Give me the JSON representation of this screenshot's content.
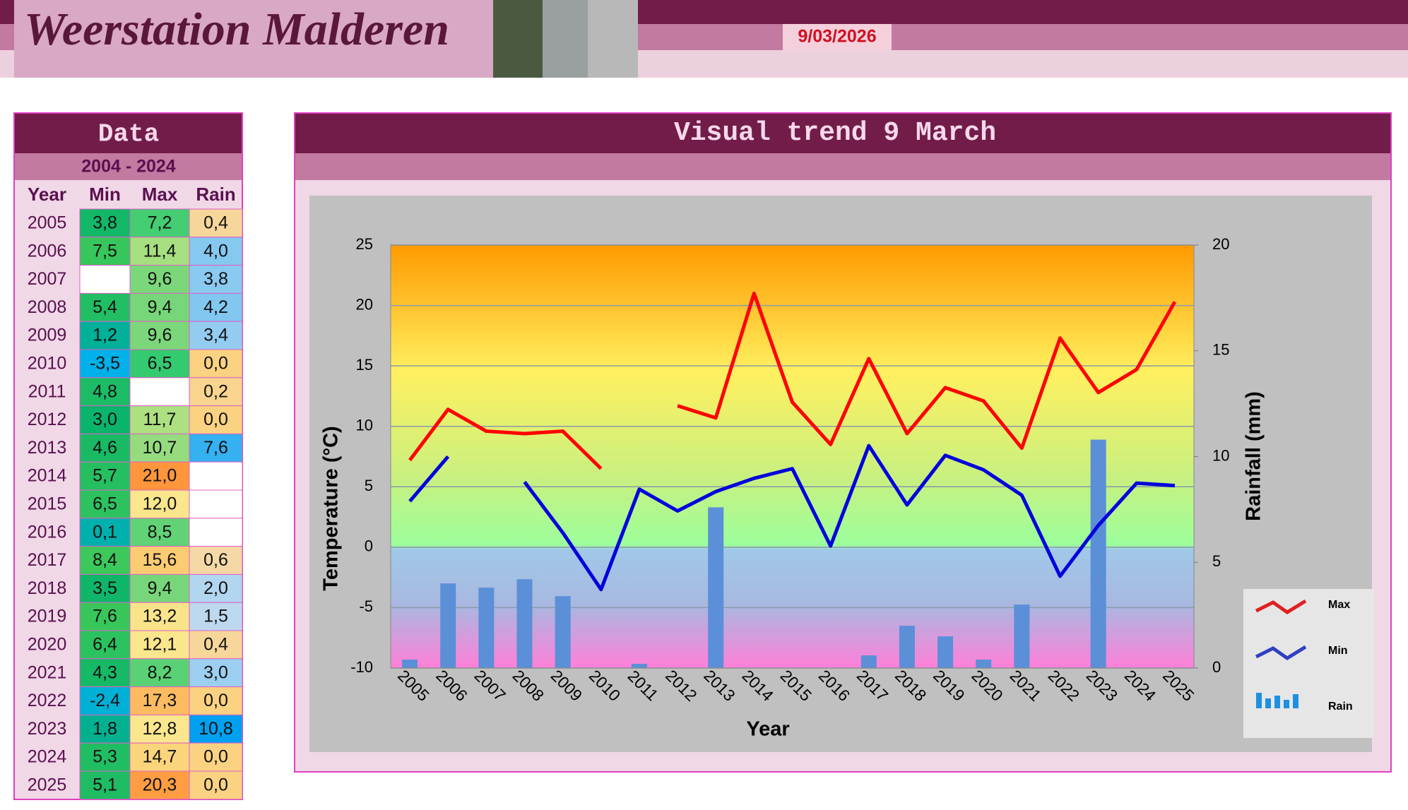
{
  "header": {
    "title": "Weerstation Malderen",
    "date": "9/03/2026"
  },
  "data_panel": {
    "title": "Data",
    "period": "2004 - 2024",
    "columns": [
      "Year",
      "Min",
      "Max",
      "Rain"
    ],
    "rows": [
      [
        "2005",
        "3,8",
        "7,2",
        "0,4"
      ],
      [
        "2006",
        "7,5",
        "11,4",
        "4,0"
      ],
      [
        "2007",
        null,
        "9,6",
        "3,8"
      ],
      [
        "2008",
        "5,4",
        "9,4",
        "4,2"
      ],
      [
        "2009",
        "1,2",
        "9,6",
        "3,4"
      ],
      [
        "2010",
        "-3,5",
        "6,5",
        "0,0"
      ],
      [
        "2011",
        "4,8",
        null,
        "0,2"
      ],
      [
        "2012",
        "3,0",
        "11,7",
        "0,0"
      ],
      [
        "2013",
        "4,6",
        "10,7",
        "7,6"
      ],
      [
        "2014",
        "5,7",
        "21,0",
        null
      ],
      [
        "2015",
        "6,5",
        "12,0",
        null
      ],
      [
        "2016",
        "0,1",
        "8,5",
        null
      ],
      [
        "2017",
        "8,4",
        "15,6",
        "0,6"
      ],
      [
        "2018",
        "3,5",
        "9,4",
        "2,0"
      ],
      [
        "2019",
        "7,6",
        "13,2",
        "1,5"
      ],
      [
        "2020",
        "6,4",
        "12,1",
        "0,4"
      ],
      [
        "2021",
        "4,3",
        "8,2",
        "3,0"
      ],
      [
        "2022",
        "-2,4",
        "17,3",
        "0,0"
      ],
      [
        "2023",
        "1,8",
        "12,8",
        "10,8"
      ],
      [
        "2024",
        "5,3",
        "14,7",
        "0,0"
      ],
      [
        "2025",
        "5,1",
        "20,3",
        "0,0"
      ]
    ]
  },
  "chart_data": {
    "type": "line",
    "title": "Visual trend 9 March",
    "x_label": "Year",
    "y_label": "Temperature (°C)",
    "y2_label": "Rainfall (mm)",
    "categories": [
      "2005",
      "2006",
      "2007",
      "2008",
      "2009",
      "2010",
      "2011",
      "2012",
      "2013",
      "2014",
      "2015",
      "2016",
      "2017",
      "2018",
      "2019",
      "2020",
      "2021",
      "2022",
      "2023",
      "2024",
      "2025"
    ],
    "series": [
      {
        "name": "Max",
        "color": "#ff0000",
        "type": "line",
        "values": [
          7.2,
          11.4,
          9.6,
          9.4,
          9.6,
          6.5,
          null,
          11.7,
          10.7,
          21.0,
          12.0,
          8.5,
          15.6,
          9.4,
          13.2,
          12.1,
          8.2,
          17.3,
          12.8,
          14.7,
          20.3
        ]
      },
      {
        "name": "Min",
        "color": "#0000dd",
        "type": "line",
        "values": [
          3.8,
          7.5,
          null,
          5.4,
          1.2,
          -3.5,
          4.8,
          3.0,
          4.6,
          5.7,
          6.5,
          0.1,
          8.4,
          3.5,
          7.6,
          6.4,
          4.3,
          -2.4,
          1.8,
          5.3,
          5.1
        ]
      },
      {
        "name": "Rain",
        "color": "#5b8fd8",
        "type": "bar",
        "axis": "y2",
        "values": [
          0.4,
          4.0,
          3.8,
          4.2,
          3.4,
          0.0,
          0.2,
          0.0,
          7.6,
          null,
          null,
          null,
          0.6,
          2.0,
          1.5,
          0.4,
          3.0,
          0.0,
          10.8,
          0.0,
          0.0
        ]
      }
    ],
    "ylim": [
      -10,
      25
    ],
    "yticks": [
      -10,
      -5,
      0,
      5,
      10,
      15,
      20,
      25
    ],
    "y2lim": [
      0,
      20
    ],
    "y2ticks": [
      0,
      5,
      10,
      15,
      20
    ],
    "grid": true
  }
}
